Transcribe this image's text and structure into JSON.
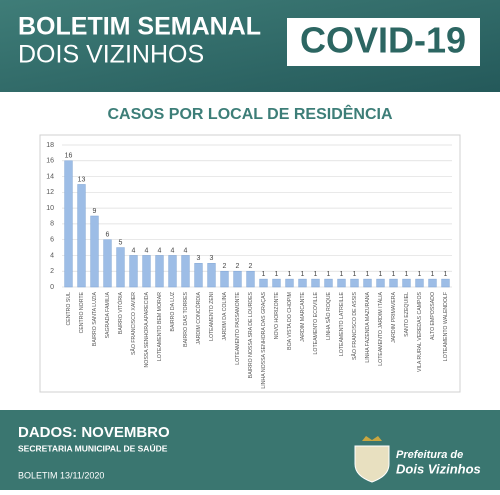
{
  "header": {
    "line1": "BOLETIM SEMANAL",
    "line2": "DOIS VIZINHOS",
    "badge": "COVID-19"
  },
  "chart_data": {
    "type": "bar",
    "title": "CASOS POR LOCAL DE RESIDÊNCIA",
    "categories": [
      "CENTRO SUL",
      "CENTRO NORTE",
      "BAIRRO SANTA LUZIA",
      "SAGRADA FAMILIA",
      "BAIRRO VITÓRIA",
      "SÃO FRANCISCO XAVIER",
      "NOSSA SENHORA APARECIDA",
      "LOTEAMENTO BEM MORAR",
      "BAIRRO DA LUZ",
      "BAIRRO DAS TORRES",
      "JARDIM CONCÓRDIA",
      "LOTEAMENTO ZENI",
      "JARDIM DA COLINA",
      "LOTEAMENTO PASSAMONTE",
      "BAIRRO NOSSA SRA DE LOURDES",
      "LINHA NOSSA SENHORA DAS GRAÇAS",
      "NOVO HORIZONTE",
      "BOA VISTA DO CHOPIM",
      "JARDIM MARCANTE",
      "LOTEAMENTO ECOVILLE",
      "LINHA SÃO ROQUE",
      "LOTEAMENTO LATREILLE",
      "SÃO FRANCISCO DE ASSIS",
      "LINHA FAZENDA MAZURANA",
      "LOTEAMENTO JARDIM ITÁLIA",
      "JARDIM PRIMAVERA",
      "SANTO EZEQUIEL",
      "VILA RURAL VEREDAS CAMPOS",
      "ALTO EMPOSSADO",
      "LOTEAMENTO WALENDOLF"
    ],
    "values": [
      16,
      13,
      9,
      6,
      5,
      4,
      4,
      4,
      4,
      4,
      3,
      3,
      2,
      2,
      2,
      1,
      1,
      1,
      1,
      1,
      1,
      1,
      1,
      1,
      1,
      1,
      1,
      1,
      1,
      1
    ],
    "color": "#9dbde6",
    "ylim": [
      0,
      18
    ],
    "yticks": [
      0,
      2,
      4,
      6,
      8,
      10,
      12,
      14,
      16,
      18
    ],
    "grid": true
  },
  "footer": {
    "data": "DADOS: NOVEMBRO",
    "dept": "SECRETARIA MUNICIPAL DE SAÚDE",
    "date": "BOLETIM 13/11/2020",
    "logo1": "Prefeitura de",
    "logo2": "Dois Vizinhos"
  }
}
